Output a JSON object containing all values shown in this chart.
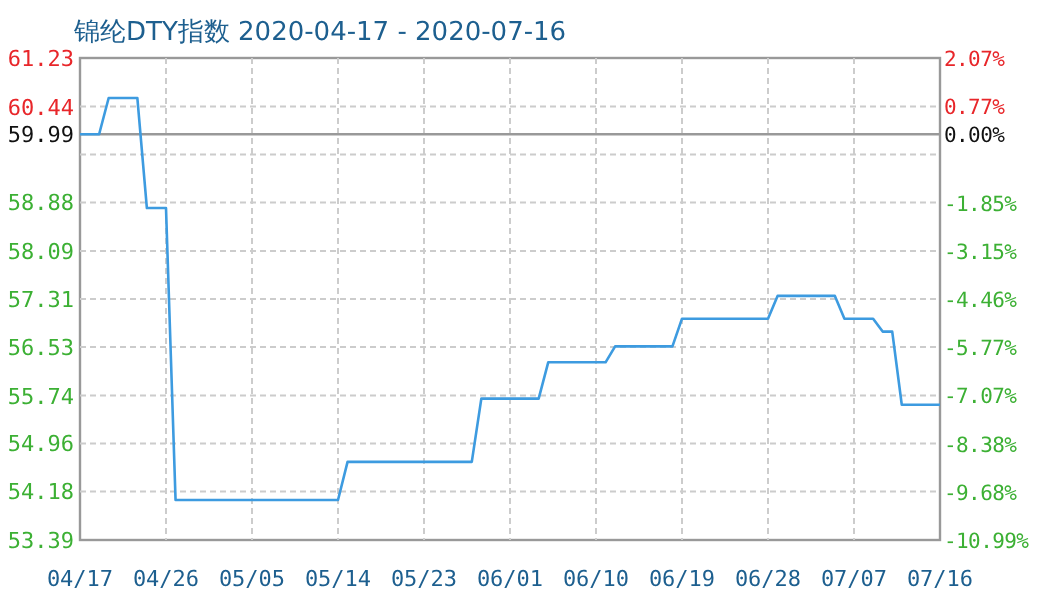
{
  "chart_data": {
    "type": "line",
    "title": "锦纶DTY指数 2020-04-17 - 2020-07-16",
    "series": [
      {
        "color": "#3d9be0",
        "x": [
          "2020-04-17",
          "2020-04-19",
          "2020-04-20",
          "2020-04-23",
          "2020-04-24",
          "2020-04-26",
          "2020-04-27",
          "2020-05-14",
          "2020-05-15",
          "2020-05-28",
          "2020-05-29",
          "2020-06-04",
          "2020-06-05",
          "2020-06-11",
          "2020-06-12",
          "2020-06-18",
          "2020-06-19",
          "2020-06-28",
          "2020-06-29",
          "2020-07-05",
          "2020-07-06",
          "2020-07-09",
          "2020-07-10",
          "2020-07-11",
          "2020-07-12",
          "2020-07-16"
        ],
        "values": [
          59.99,
          59.99,
          60.58,
          60.58,
          58.79,
          58.79,
          54.04,
          54.04,
          54.66,
          54.66,
          55.69,
          55.69,
          56.28,
          56.28,
          56.54,
          56.54,
          56.99,
          56.99,
          57.36,
          57.36,
          56.99,
          56.99,
          56.78,
          56.78,
          55.59,
          55.59
        ]
      }
    ],
    "xlim": [
      "2020-04-17",
      "2020-07-16"
    ],
    "xticks": [
      {
        "value": "2020-04-17",
        "label": "04/17"
      },
      {
        "value": "2020-04-26",
        "label": "04/26"
      },
      {
        "value": "2020-05-05",
        "label": "05/05"
      },
      {
        "value": "2020-05-14",
        "label": "05/14"
      },
      {
        "value": "2020-05-23",
        "label": "05/23"
      },
      {
        "value": "2020-06-01",
        "label": "06/01"
      },
      {
        "value": "2020-06-10",
        "label": "06/10"
      },
      {
        "value": "2020-06-19",
        "label": "06/19"
      },
      {
        "value": "2020-06-28",
        "label": "06/28"
      },
      {
        "value": "2020-07-07",
        "label": "07/07"
      },
      {
        "value": "2020-07-16",
        "label": "07/16"
      }
    ],
    "ylim": [
      53.39,
      61.23
    ],
    "yticks": [
      53.39,
      54.18,
      54.96,
      55.74,
      56.53,
      57.31,
      58.09,
      58.88,
      {
        "value": 59.66,
        "label": null
      },
      60.44,
      61.23
    ],
    "y2lim": [
      -10.99,
      2.07
    ],
    "y2ticks": [
      {
        "value": -10.99,
        "label": "-10.99%"
      },
      {
        "value": -9.68,
        "label": "-9.68%"
      },
      {
        "value": -8.38,
        "label": "-8.38%"
      },
      {
        "value": -7.07,
        "label": "-7.07%"
      },
      {
        "value": -5.77,
        "label": "-5.77%"
      },
      {
        "value": -4.46,
        "label": "-4.46%"
      },
      {
        "value": -3.15,
        "label": "-3.15%"
      },
      {
        "value": -1.85,
        "label": "-1.85%"
      },
      {
        "value": 0,
        "label": "0.00%"
      },
      {
        "value": 0.77,
        "label": "0.77%"
      },
      {
        "value": 2.07,
        "label": "2.07%"
      }
    ],
    "ref_lines": [
      {
        "axis": "y",
        "value": 59.99,
        "label": "59.99",
        "color": "#999999"
      }
    ],
    "grid": true
  }
}
